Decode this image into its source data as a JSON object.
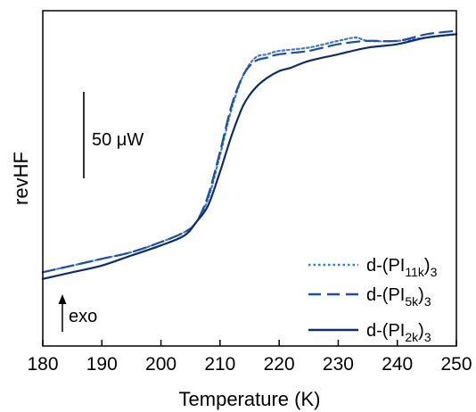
{
  "chart_data": {
    "type": "line",
    "title": "",
    "xlabel": "Temperature (K)",
    "ylabel": "revHF",
    "xlim": [
      180,
      250
    ],
    "ylim": [
      0,
      1
    ],
    "x_ticks": [
      180,
      190,
      200,
      210,
      220,
      230,
      240,
      250
    ],
    "y_ticks_shown": false,
    "grid": false,
    "legend_position": "bottom-right",
    "scale_bar_label": "50 μW",
    "exo_label": "exo",
    "series": [
      {
        "name": "d-(PI11k)3",
        "label_base": "d-(PI",
        "label_sub": "11k",
        "label_close": ")",
        "label_tail": "3",
        "style": "dotted",
        "color": "#3a7bd5",
        "x": [
          180,
          185,
          190,
          195,
          200,
          204,
          206,
          208,
          210,
          212,
          214,
          216,
          218,
          220,
          225,
          230,
          233,
          235,
          240,
          245,
          250
        ],
        "y": [
          0.22,
          0.24,
          0.26,
          0.28,
          0.31,
          0.34,
          0.37,
          0.44,
          0.57,
          0.71,
          0.81,
          0.86,
          0.87,
          0.88,
          0.89,
          0.91,
          0.92,
          0.91,
          0.91,
          0.92,
          0.93
        ]
      },
      {
        "name": "d-(PI5k)3",
        "label_base": "d-(PI",
        "label_sub": "5k",
        "label_close": ")",
        "label_tail": "3",
        "style": "dashed",
        "color": "#1f4fa3",
        "x": [
          180,
          185,
          190,
          195,
          200,
          204,
          206,
          208,
          210,
          212,
          214,
          216,
          218,
          220,
          225,
          230,
          235,
          240,
          245,
          250
        ],
        "y": [
          0.22,
          0.24,
          0.26,
          0.28,
          0.31,
          0.34,
          0.37,
          0.45,
          0.58,
          0.72,
          0.81,
          0.85,
          0.86,
          0.87,
          0.88,
          0.9,
          0.91,
          0.91,
          0.93,
          0.94
        ]
      },
      {
        "name": "d-(PI2k)3",
        "label_base": "d-(PI",
        "label_sub": "2k",
        "label_close": ")",
        "label_tail": "3",
        "style": "solid",
        "color": "#0f2d6b",
        "x": [
          180,
          185,
          190,
          195,
          200,
          204,
          206,
          208,
          210,
          212,
          214,
          216,
          218,
          220,
          222,
          225,
          230,
          235,
          240,
          245,
          250
        ],
        "y": [
          0.2,
          0.22,
          0.24,
          0.27,
          0.3,
          0.33,
          0.37,
          0.42,
          0.52,
          0.63,
          0.72,
          0.77,
          0.8,
          0.82,
          0.83,
          0.85,
          0.87,
          0.89,
          0.9,
          0.92,
          0.93
        ]
      }
    ]
  }
}
